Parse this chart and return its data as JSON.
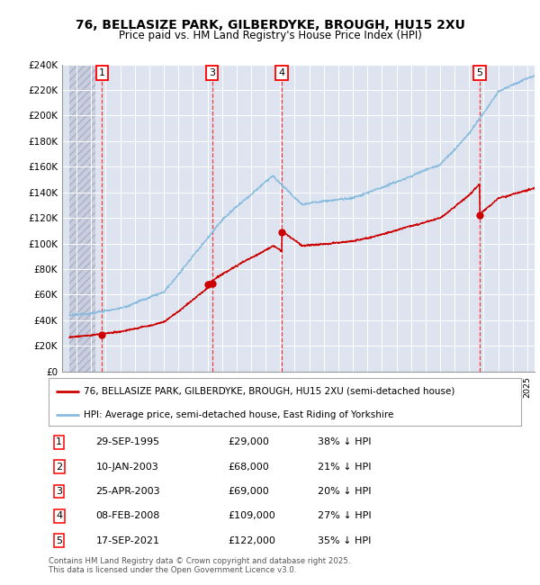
{
  "title1": "76, BELLASIZE PARK, GILBERDYKE, BROUGH, HU15 2XU",
  "title2": "Price paid vs. HM Land Registry's House Price Index (HPI)",
  "ylim": [
    0,
    240000
  ],
  "yticks": [
    0,
    20000,
    40000,
    60000,
    80000,
    100000,
    120000,
    140000,
    160000,
    180000,
    200000,
    220000,
    240000
  ],
  "ytick_labels": [
    "£0",
    "£20K",
    "£40K",
    "£60K",
    "£80K",
    "£100K",
    "£120K",
    "£140K",
    "£160K",
    "£180K",
    "£200K",
    "£220K",
    "£240K"
  ],
  "background_color": "#ffffff",
  "plot_bg_color": "#dde4f0",
  "red_color": "#cc0000",
  "blue_color": "#88bbdd",
  "sale_points": [
    {
      "label": 1,
      "date_idx": 1995.75,
      "price": 29000
    },
    {
      "label": 2,
      "date_idx": 2003.03,
      "price": 68000
    },
    {
      "label": 3,
      "date_idx": 2003.32,
      "price": 69000
    },
    {
      "label": 4,
      "date_idx": 2008.1,
      "price": 109000
    },
    {
      "label": 5,
      "date_idx": 2021.72,
      "price": 122000
    }
  ],
  "shown_vlines": [
    1,
    3,
    4,
    5
  ],
  "legend_red_label": "76, BELLASIZE PARK, GILBERDYKE, BROUGH, HU15 2XU (semi-detached house)",
  "legend_blue_label": "HPI: Average price, semi-detached house, East Riding of Yorkshire",
  "footer": "Contains HM Land Registry data © Crown copyright and database right 2025.\nThis data is licensed under the Open Government Licence v3.0.",
  "table_rows": [
    {
      "num": 1,
      "date": "29-SEP-1995",
      "price": "£29,000",
      "hpi": "38% ↓ HPI"
    },
    {
      "num": 2,
      "date": "10-JAN-2003",
      "price": "£68,000",
      "hpi": "21% ↓ HPI"
    },
    {
      "num": 3,
      "date": "25-APR-2003",
      "price": "£69,000",
      "hpi": "20% ↓ HPI"
    },
    {
      "num": 4,
      "date": "08-FEB-2008",
      "price": "£109,000",
      "hpi": "27% ↓ HPI"
    },
    {
      "num": 5,
      "date": "17-SEP-2021",
      "price": "£122,000",
      "hpi": "35% ↓ HPI"
    }
  ],
  "xstart": 1993.5,
  "xend": 2025.5
}
